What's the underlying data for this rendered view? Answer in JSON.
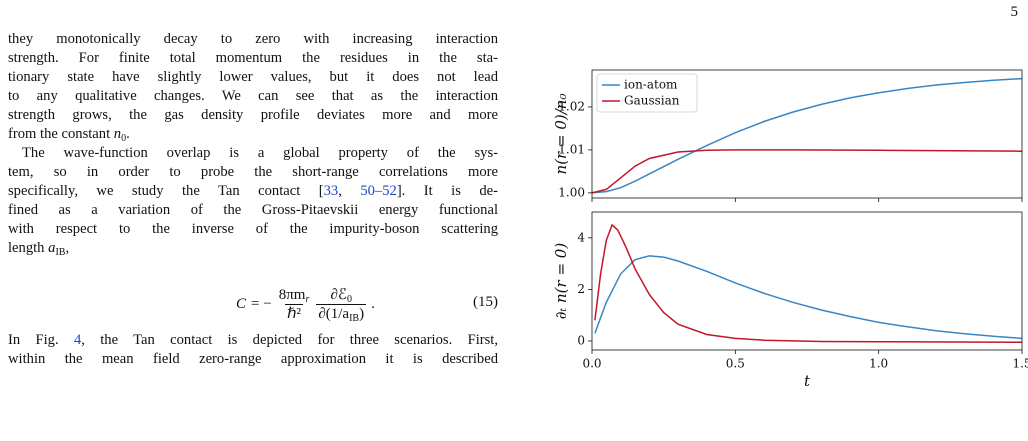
{
  "page_number": "5",
  "paragraphs": [
    {
      "indent": false,
      "lines": [
        [
          {
            "text": "they monotonically decay to zero with increasing interaction"
          }
        ],
        [
          {
            "text": "strength. For finite total momentum the residues in the sta-"
          }
        ],
        [
          {
            "text": "tionary state have slightly lower values, but it does not lead"
          }
        ],
        [
          {
            "text": "to any qualitative changes. We can see that as the interaction"
          }
        ],
        [
          {
            "text": "strength grows, the gas density profile deviates more and more"
          }
        ],
        [
          {
            "text": "from the constant "
          },
          {
            "text": "n",
            "style": "math"
          },
          {
            "text": "0",
            "style": "sub"
          },
          {
            "text": "."
          }
        ]
      ]
    },
    {
      "indent": true,
      "lines": [
        [
          {
            "text": "The wave-function overlap is a global property of the sys-"
          }
        ],
        [
          {
            "text": "tem, so in order to probe the short-range correlations more"
          }
        ],
        [
          {
            "text": "specifically, we study the Tan contact ["
          },
          {
            "text": "33",
            "style": "link"
          },
          {
            "text": ", "
          },
          {
            "text": "50–52",
            "style": "link"
          },
          {
            "text": "]. It is de-"
          }
        ],
        [
          {
            "text": "fined as a variation of the Gross-Pitaevskii energy functional"
          }
        ],
        [
          {
            "text": "with respect to the inverse of the impurity-boson scattering"
          }
        ],
        [
          {
            "text": "length "
          },
          {
            "text": "a",
            "style": "math"
          },
          {
            "text": "IB",
            "style": "sub"
          },
          {
            "text": ","
          }
        ]
      ]
    },
    {
      "indent": false,
      "lines": [
        [
          {
            "text": "In Fig. "
          },
          {
            "text": "4",
            "style": "link"
          },
          {
            "text": ", the Tan contact is depicted for three scenarios. First,"
          }
        ],
        [
          {
            "text": "within the mean field zero-range approximation it is described"
          }
        ]
      ]
    }
  ],
  "equation": {
    "lhs": "C",
    "eq": "= −",
    "num1": "8πm",
    "num1_sub": "r",
    "den1": "ℏ²",
    "num2": "∂ℰ",
    "num2_sub": "0",
    "den2": "∂(1/a",
    "den2_sub": "IB",
    "den2_end": ")",
    "end": ".",
    "number": "(15)"
  },
  "chart_data": [
    {
      "type": "line",
      "ylabel": "n(r = 0)/n₀",
      "xlim": [
        0,
        1.5
      ],
      "ylim": [
        0.9988,
        1.0286
      ],
      "xticks": [
        0,
        0.5,
        1,
        1.5
      ],
      "xtick_labels": false,
      "yticks": [
        {
          "value": 1,
          "label": "1.00"
        },
        1.01,
        1.02
      ],
      "legend": "upper left",
      "series": [
        {
          "name": "ion-atom",
          "color": "#3a86c4",
          "x": [
            0,
            0.05,
            0.1,
            0.15,
            0.2,
            0.3,
            0.4,
            0.5,
            0.6,
            0.7,
            0.8,
            0.9,
            1.0,
            1.1,
            1.2,
            1.3,
            1.4,
            1.5
          ],
          "values": [
            1.0,
            1.0003,
            1.0012,
            1.0027,
            1.0044,
            1.0078,
            1.011,
            1.014,
            1.0166,
            1.0188,
            1.0206,
            1.0221,
            1.0233,
            1.0243,
            1.0251,
            1.0257,
            1.0262,
            1.0266
          ]
        },
        {
          "name": "Gaussian",
          "color": "#c0172b",
          "x": [
            0,
            0.05,
            0.1,
            0.15,
            0.2,
            0.3,
            0.4,
            0.5,
            0.7,
            1.0,
            1.5
          ],
          "values": [
            1.0,
            1.0008,
            1.0035,
            1.0062,
            1.008,
            1.0095,
            1.0099,
            1.01,
            1.01,
            1.0099,
            1.0097
          ]
        }
      ]
    },
    {
      "type": "line",
      "ylabel": "∂ₜ n(r = 0)",
      "xlabel": "t",
      "xlim": [
        0,
        1.5
      ],
      "ylim": [
        -0.35,
        5.0
      ],
      "xticks": [
        {
          "value": 0,
          "label": "0.0"
        },
        0.5,
        {
          "value": 1,
          "label": "1.0"
        },
        1.5
      ],
      "xtick_labels": true,
      "yticks": [
        0,
        2,
        4
      ],
      "series": [
        {
          "color": "#3a86c4",
          "x": [
            0.01,
            0.05,
            0.1,
            0.15,
            0.2,
            0.25,
            0.3,
            0.4,
            0.5,
            0.6,
            0.7,
            0.8,
            0.9,
            1.0,
            1.1,
            1.2,
            1.3,
            1.4,
            1.5
          ],
          "values": [
            0.3,
            1.5,
            2.6,
            3.15,
            3.3,
            3.25,
            3.1,
            2.7,
            2.25,
            1.85,
            1.5,
            1.2,
            0.95,
            0.72,
            0.55,
            0.4,
            0.28,
            0.18,
            0.1
          ]
        },
        {
          "color": "#c0172b",
          "x": [
            0.01,
            0.03,
            0.05,
            0.07,
            0.09,
            0.12,
            0.15,
            0.2,
            0.25,
            0.3,
            0.4,
            0.5,
            0.6,
            0.8,
            1.0,
            1.5
          ],
          "values": [
            0.8,
            2.6,
            3.9,
            4.5,
            4.3,
            3.6,
            2.8,
            1.8,
            1.1,
            0.65,
            0.25,
            0.1,
            0.03,
            -0.02,
            -0.03,
            -0.05
          ]
        }
      ]
    }
  ]
}
